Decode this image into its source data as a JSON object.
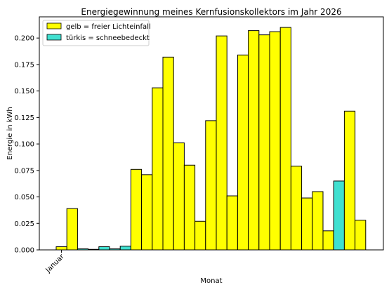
{
  "colors": {
    "sunlight": "#ffff00",
    "snow": "#40e0d0",
    "edge": "#000000"
  },
  "chart_data": {
    "type": "bar",
    "title": "Energiegewinnung meines Kernfusionskollektors im Jahr 2026",
    "xlabel": "Monat",
    "ylabel": "Energie in kWh",
    "ylim": [
      0,
      0.22
    ],
    "yticks": [
      "0.000",
      "0.025",
      "0.050",
      "0.075",
      "0.100",
      "0.125",
      "0.150",
      "0.175",
      "0.200"
    ],
    "xtick_labels": [
      "Januar"
    ],
    "grid": false,
    "legend_position": "top-left",
    "legend": [
      {
        "label": "gelb = freier Lichteinfall",
        "color": "#ffff00"
      },
      {
        "label": "türkis = schneebedeckt",
        "color": "#40e0d0"
      }
    ],
    "bars": [
      {
        "value": 0.003,
        "state": "gelb"
      },
      {
        "value": 0.039,
        "state": "gelb"
      },
      {
        "value": 0.001,
        "state": "türkis"
      },
      {
        "value": 0.0005,
        "state": "türkis"
      },
      {
        "value": 0.003,
        "state": "türkis"
      },
      {
        "value": 0.001,
        "state": "türkis"
      },
      {
        "value": 0.0035,
        "state": "türkis"
      },
      {
        "value": 0.076,
        "state": "gelb"
      },
      {
        "value": 0.071,
        "state": "gelb"
      },
      {
        "value": 0.153,
        "state": "gelb"
      },
      {
        "value": 0.182,
        "state": "gelb"
      },
      {
        "value": 0.101,
        "state": "gelb"
      },
      {
        "value": 0.08,
        "state": "gelb"
      },
      {
        "value": 0.027,
        "state": "gelb"
      },
      {
        "value": 0.122,
        "state": "gelb"
      },
      {
        "value": 0.202,
        "state": "gelb"
      },
      {
        "value": 0.051,
        "state": "gelb"
      },
      {
        "value": 0.184,
        "state": "gelb"
      },
      {
        "value": 0.207,
        "state": "gelb"
      },
      {
        "value": 0.203,
        "state": "gelb"
      },
      {
        "value": 0.206,
        "state": "gelb"
      },
      {
        "value": 0.21,
        "state": "gelb"
      },
      {
        "value": 0.079,
        "state": "gelb"
      },
      {
        "value": 0.049,
        "state": "gelb"
      },
      {
        "value": 0.055,
        "state": "gelb"
      },
      {
        "value": 0.018,
        "state": "gelb"
      },
      {
        "value": 0.065,
        "state": "türkis"
      },
      {
        "value": 0.131,
        "state": "gelb"
      },
      {
        "value": 0.028,
        "state": "gelb"
      }
    ]
  }
}
